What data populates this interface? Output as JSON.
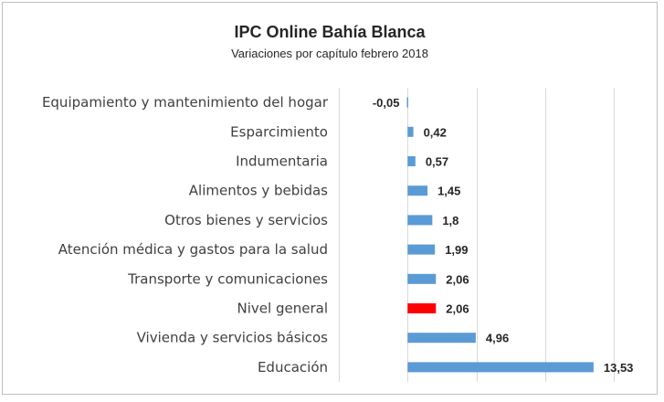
{
  "chart_data": {
    "type": "bar",
    "orientation": "horizontal",
    "title": "IPC Online Bahía Blanca",
    "subtitle": "Variaciones por capítulo febrero 2018",
    "categories": [
      "Equipamiento y mantenimiento del hogar",
      "Esparcimiento",
      "Indumentaria",
      "Alimentos y bebidas",
      "Otros bienes y servicios",
      "Atención médica y gastos para la salud",
      "Transporte y comunicaciones",
      "Nivel general",
      "Vivienda y servicios básicos",
      "Educación"
    ],
    "values": [
      -0.05,
      0.42,
      0.57,
      1.45,
      1.8,
      1.99,
      2.06,
      2.06,
      4.96,
      13.53
    ],
    "value_labels": [
      "-0,05",
      "0,42",
      "0,57",
      "1,45",
      "1,8",
      "1,99",
      "2,06",
      "2,06",
      "4,96",
      "13,53"
    ],
    "highlight_category": "Nivel general",
    "xlim": [
      -5,
      15
    ],
    "gridlines_at": [
      -5,
      0,
      5,
      10,
      15
    ],
    "grid": true,
    "legend": "none",
    "colors": {
      "bar": "#5b9bd5",
      "highlight": "#ff0000",
      "grid": "#d9d9d9"
    }
  }
}
